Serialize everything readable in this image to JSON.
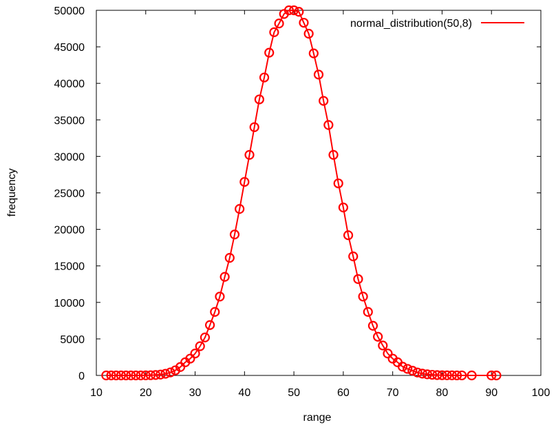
{
  "chart_data": {
    "type": "line",
    "xlabel": "range",
    "ylabel": "frequency",
    "xlim": [
      10,
      100
    ],
    "ylim": [
      0,
      50000
    ],
    "xticks": [
      10,
      20,
      30,
      40,
      50,
      60,
      70,
      80,
      90,
      100
    ],
    "yticks": [
      0,
      5000,
      10000,
      15000,
      20000,
      25000,
      30000,
      35000,
      40000,
      45000,
      50000
    ],
    "legend_position": "top-right",
    "grid": false,
    "series": [
      {
        "name": "normal_distribution(50,8)",
        "color": "#ff0000",
        "marker": "circle",
        "x": [
          12,
          13,
          14,
          15,
          16,
          17,
          18,
          19,
          20,
          21,
          22,
          23,
          24,
          25,
          26,
          27,
          28,
          29,
          30,
          31,
          32,
          33,
          34,
          35,
          36,
          37,
          38,
          39,
          40,
          41,
          42,
          43,
          44,
          45,
          46,
          47,
          48,
          49,
          50,
          51,
          52,
          53,
          54,
          55,
          56,
          57,
          58,
          59,
          60,
          61,
          62,
          63,
          64,
          65,
          66,
          67,
          68,
          69,
          70,
          71,
          72,
          73,
          74,
          75,
          76,
          77,
          78,
          79,
          80,
          81,
          82,
          83,
          84,
          86,
          90,
          91
        ],
        "y": [
          0,
          0,
          0,
          0,
          0,
          0,
          0,
          0,
          10,
          30,
          60,
          120,
          230,
          410,
          700,
          1150,
          1800,
          2300,
          3000,
          4000,
          5200,
          6900,
          8700,
          10800,
          13500,
          16100,
          19300,
          22800,
          26500,
          30200,
          34000,
          37800,
          40800,
          44200,
          47000,
          48200,
          49500,
          50000,
          50000,
          49800,
          48300,
          46800,
          44100,
          41200,
          37600,
          34300,
          30200,
          26300,
          23000,
          19200,
          16300,
          13200,
          10800,
          8700,
          6800,
          5300,
          4100,
          3000,
          2300,
          1800,
          1200,
          900,
          650,
          400,
          250,
          150,
          90,
          50,
          30,
          20,
          10,
          5,
          5,
          2,
          1,
          0
        ]
      }
    ]
  }
}
